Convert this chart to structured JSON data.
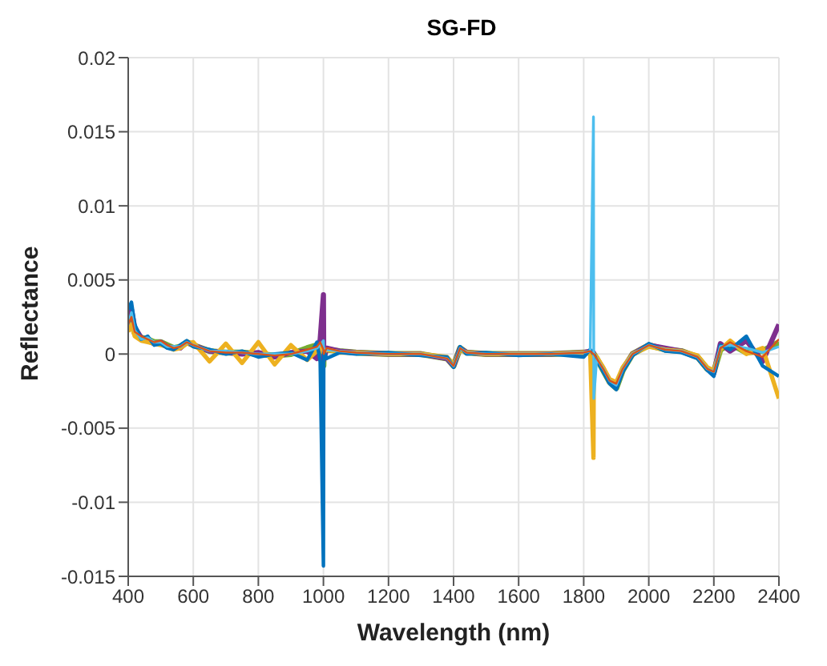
{
  "chart_data": {
    "type": "line",
    "title": "SG-FD",
    "xlabel": "Wavelength (nm)",
    "ylabel": "Reflectance",
    "x": [
      400,
      410,
      420,
      440,
      460,
      480,
      500,
      520,
      540,
      560,
      580,
      600,
      650,
      700,
      750,
      800,
      850,
      900,
      950,
      980,
      990,
      1000,
      1001,
      1010,
      1050,
      1100,
      1200,
      1300,
      1380,
      1400,
      1420,
      1440,
      1500,
      1600,
      1700,
      1800,
      1820,
      1830,
      1831,
      1840,
      1860,
      1880,
      1900,
      1920,
      1950,
      2000,
      2050,
      2100,
      2150,
      2180,
      2200,
      2220,
      2250,
      2300,
      2350,
      2400
    ],
    "series": [
      {
        "color": "#77ac30",
        "values": [
          0.0018,
          0.0022,
          0.0014,
          0.0011,
          0.001,
          0.0008,
          0.0008,
          0.0006,
          0.0004,
          0.0005,
          0.0008,
          0.0006,
          0.0002,
          0.0001,
          0.0001,
          0,
          -0.0001,
          0,
          0.0004,
          0.0006,
          -0.0002,
          -0.0008,
          0.0003,
          0.0003,
          0.0002,
          0.0001,
          0,
          0,
          -0.0003,
          -0.0008,
          0.0004,
          0.0001,
          0,
          0,
          0,
          0.0001,
          0.0001,
          0,
          0,
          -0.0003,
          -0.0011,
          -0.0019,
          -0.0023,
          -0.0011,
          0,
          0.0006,
          0.0003,
          0.0002,
          -0.0002,
          -0.001,
          -0.0012,
          0.0003,
          0.0007,
          0.0001,
          0.0002,
          0.0008
        ]
      },
      {
        "color": "#7e2f8e",
        "values": [
          0.0025,
          0.003,
          0.0018,
          0.0011,
          0.0009,
          0.0007,
          0.0008,
          0.0005,
          0.0004,
          0.0004,
          0.0008,
          0.0006,
          0.0002,
          0.0001,
          0,
          0.0001,
          -0.0002,
          0.0001,
          0.0002,
          -0.0003,
          0.001,
          0.004,
          -0.0004,
          0.0004,
          0.0002,
          0.0001,
          0,
          0,
          -0.0003,
          -0.0008,
          0.0004,
          0.0001,
          0,
          0,
          0,
          0.0001,
          0.0002,
          0.0001,
          0,
          -0.0003,
          -0.001,
          -0.0019,
          -0.0022,
          -0.001,
          0,
          0.0006,
          0.0004,
          0.0002,
          -0.0002,
          -0.001,
          -0.0013,
          0.0007,
          0.0002,
          0.0009,
          -0.0005,
          0.002
        ]
      },
      {
        "color": "#edb120",
        "values": [
          0.0015,
          0.002,
          0.0012,
          0.0009,
          0.0008,
          0.0007,
          0.0006,
          0.0005,
          0.0003,
          0.0004,
          0.0007,
          0.0008,
          -0.0005,
          0.0007,
          -0.0006,
          0.0008,
          -0.0007,
          0.0006,
          -0.0004,
          0.0002,
          0.0005,
          0.0001,
          0.0001,
          0.0003,
          0.0001,
          0.0001,
          0,
          0,
          -0.0002,
          -0.0007,
          0.0003,
          0.0001,
          0,
          0,
          0,
          0.0001,
          0.0001,
          -0.007,
          0,
          -0.0002,
          -0.0009,
          -0.0017,
          -0.0019,
          -0.0009,
          0,
          0.0005,
          0.0003,
          0.0002,
          -0.0001,
          -0.0009,
          -0.0011,
          0.0003,
          0.0009,
          0,
          0.0004,
          -0.003
        ]
      },
      {
        "color": "#0072bd",
        "values": [
          0.003,
          0.0035,
          0.002,
          0.001,
          0.0012,
          0.0006,
          0.0007,
          0.0004,
          0.0003,
          0.0006,
          0.0009,
          0.0005,
          0.0003,
          0,
          0.0002,
          -0.0002,
          0,
          0.0001,
          -0.0004,
          0.0008,
          -0.0005,
          -0.0143,
          0.0002,
          -0.0003,
          0.0001,
          0,
          0.0001,
          -0.0001,
          -0.0002,
          -0.0009,
          0.0005,
          0,
          0.0001,
          -0.0001,
          0,
          -0.0002,
          0.0003,
          0,
          0,
          -0.0004,
          -0.0012,
          -0.002,
          -0.0024,
          -0.0012,
          -0.0001,
          0.0007,
          0.0002,
          0.0001,
          -0.0003,
          -0.0011,
          -0.0015,
          0.0006,
          0.0003,
          0.0012,
          -0.0008,
          -0.0015
        ]
      },
      {
        "color": "#4dbeee",
        "values": [
          0.002,
          0.0028,
          0.0016,
          0.001,
          0.0011,
          0.0008,
          0.0008,
          0.0005,
          0.0005,
          0.0005,
          0.0008,
          0.0006,
          0.0002,
          0.0002,
          0.0001,
          0,
          0,
          0,
          0.0002,
          0.0004,
          0.0006,
          0.0009,
          0.0002,
          0.0003,
          0.0002,
          0.0001,
          0,
          0,
          -0.0003,
          -0.0008,
          0.0004,
          0.0001,
          0,
          0,
          0,
          0.0001,
          0.0002,
          0.016,
          -0.003,
          -0.0003,
          -0.001,
          -0.0018,
          -0.0021,
          -0.001,
          0,
          0.0006,
          0.0003,
          0.0002,
          -0.0002,
          -0.001,
          -0.0012,
          0.0005,
          0.0006,
          0.0004,
          0.0001,
          0.0005
        ]
      },
      {
        "color": "#d95319",
        "values": [
          0.002,
          0.0025,
          0.0015,
          0.0012,
          0.001,
          0.0008,
          0.0009,
          0.0006,
          0.0004,
          0.0005,
          0.0008,
          0.0006,
          0.0002,
          0.0001,
          0.0001,
          0,
          -0.0001,
          0,
          0.0003,
          0.0005,
          0.0008,
          0.0003,
          0,
          0.0004,
          0.0002,
          0.0001,
          0,
          0,
          -0.0003,
          -0.0008,
          0.0004,
          0.0001,
          0,
          0,
          0,
          0.0001,
          0.0002,
          0,
          0,
          -0.0003,
          -0.001,
          -0.0018,
          -0.002,
          -0.001,
          0,
          0.0006,
          0.0003,
          0.0002,
          -0.0002,
          -0.001,
          -0.0012,
          0.0004,
          0.0008,
          0.0002,
          -0.0002,
          0.001
        ]
      }
    ],
    "xlim": [
      400,
      2400
    ],
    "xticks": [
      400,
      600,
      800,
      1000,
      1200,
      1400,
      1600,
      1800,
      2000,
      2200,
      2400
    ],
    "ylim": [
      -0.015,
      0.02
    ],
    "yticks": [
      -0.015,
      -0.01,
      -0.005,
      0,
      0.005,
      0.01,
      0.015,
      0.02
    ],
    "grid": true,
    "legend": false,
    "marker": "none",
    "line_style": "solid"
  }
}
